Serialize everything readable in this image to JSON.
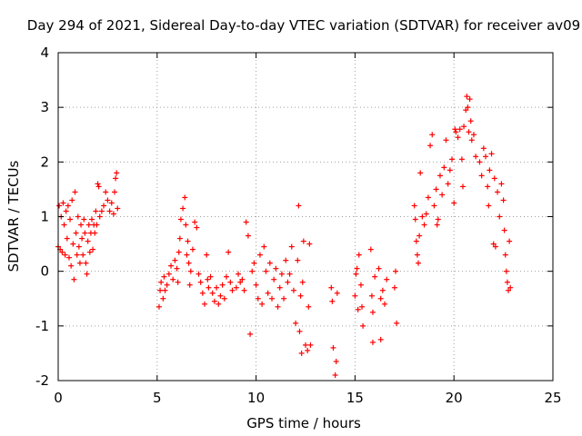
{
  "chart_data": {
    "type": "scatter",
    "title": "Day 294 of 2021, Sidereal Day-to-day VTEC variation (SDTVAR) for receiver av09",
    "xlabel": "GPS time / hours",
    "ylabel": "SDTVAR / TECUs",
    "xlim": [
      0,
      25
    ],
    "ylim": [
      -2,
      4
    ],
    "xticks": [
      0,
      5,
      10,
      15,
      20,
      25
    ],
    "yticks": [
      -2,
      -1,
      0,
      1,
      2,
      3,
      4
    ],
    "xtick_labels": [
      "0",
      "5",
      "10",
      "15",
      "20",
      "25"
    ],
    "ytick_labels": [
      "-2",
      "-1",
      "0",
      "1",
      "2",
      "3",
      "4"
    ],
    "grid": true,
    "marker": "+",
    "series_color": "#ff0000",
    "series": [
      {
        "name": "SDTVAR",
        "points": [
          [
            0.0,
            0.45
          ],
          [
            0.05,
            1.2
          ],
          [
            0.1,
            0.4
          ],
          [
            0.15,
            1.0
          ],
          [
            0.2,
            0.35
          ],
          [
            0.25,
            1.25
          ],
          [
            0.3,
            0.85
          ],
          [
            0.35,
            0.3
          ],
          [
            0.4,
            1.1
          ],
          [
            0.45,
            0.6
          ],
          [
            0.5,
            1.2
          ],
          [
            0.55,
            0.25
          ],
          [
            0.6,
            0.95
          ],
          [
            0.65,
            0.1
          ],
          [
            0.7,
            1.3
          ],
          [
            0.75,
            0.5
          ],
          [
            0.8,
            -0.15
          ],
          [
            0.85,
            1.45
          ],
          [
            0.9,
            0.7
          ],
          [
            0.95,
            0.3
          ],
          [
            1.0,
            1.0
          ],
          [
            1.05,
            0.45
          ],
          [
            1.1,
            0.15
          ],
          [
            1.15,
            0.85
          ],
          [
            1.2,
            0.6
          ],
          [
            1.25,
            0.3
          ],
          [
            1.3,
            0.95
          ],
          [
            1.35,
            0.7
          ],
          [
            1.4,
            0.15
          ],
          [
            1.45,
            -0.05
          ],
          [
            1.5,
            0.55
          ],
          [
            1.55,
            0.85
          ],
          [
            1.6,
            0.35
          ],
          [
            1.65,
            0.7
          ],
          [
            1.7,
            0.95
          ],
          [
            1.75,
            0.4
          ],
          [
            1.8,
            0.85
          ],
          [
            1.85,
            0.7
          ],
          [
            1.9,
            1.1
          ],
          [
            1.95,
            0.85
          ],
          [
            2.0,
            1.6
          ],
          [
            2.05,
            1.55
          ],
          [
            2.1,
            1.0
          ],
          [
            2.2,
            1.1
          ],
          [
            2.3,
            1.2
          ],
          [
            2.4,
            1.45
          ],
          [
            2.5,
            1.3
          ],
          [
            2.6,
            1.1
          ],
          [
            2.7,
            1.25
          ],
          [
            2.8,
            1.05
          ],
          [
            2.85,
            1.45
          ],
          [
            2.9,
            1.7
          ],
          [
            2.95,
            1.8
          ],
          [
            3.0,
            1.15
          ],
          [
            5.1,
            -0.65
          ],
          [
            5.15,
            -0.35
          ],
          [
            5.2,
            -0.2
          ],
          [
            5.3,
            -0.5
          ],
          [
            5.35,
            -0.1
          ],
          [
            5.4,
            -0.35
          ],
          [
            5.5,
            -0.25
          ],
          [
            5.6,
            -0.05
          ],
          [
            5.7,
            0.1
          ],
          [
            5.8,
            -0.15
          ],
          [
            5.9,
            0.2
          ],
          [
            6.0,
            0.05
          ],
          [
            6.05,
            -0.2
          ],
          [
            6.1,
            0.35
          ],
          [
            6.15,
            0.6
          ],
          [
            6.2,
            0.95
          ],
          [
            6.3,
            1.15
          ],
          [
            6.4,
            1.35
          ],
          [
            6.45,
            0.85
          ],
          [
            6.5,
            0.3
          ],
          [
            6.55,
            0.55
          ],
          [
            6.6,
            0.15
          ],
          [
            6.65,
            -0.25
          ],
          [
            6.7,
            0.0
          ],
          [
            6.8,
            0.4
          ],
          [
            6.9,
            0.9
          ],
          [
            7.0,
            0.8
          ],
          [
            7.1,
            -0.05
          ],
          [
            7.2,
            -0.2
          ],
          [
            7.3,
            -0.4
          ],
          [
            7.4,
            -0.6
          ],
          [
            7.5,
            0.3
          ],
          [
            7.55,
            -0.15
          ],
          [
            7.6,
            -0.3
          ],
          [
            7.7,
            -0.1
          ],
          [
            7.8,
            -0.4
          ],
          [
            7.9,
            -0.55
          ],
          [
            8.0,
            -0.3
          ],
          [
            8.1,
            -0.6
          ],
          [
            8.2,
            -0.45
          ],
          [
            8.3,
            -0.25
          ],
          [
            8.4,
            -0.5
          ],
          [
            8.5,
            -0.1
          ],
          [
            8.6,
            0.35
          ],
          [
            8.7,
            -0.2
          ],
          [
            8.8,
            -0.35
          ],
          [
            9.0,
            -0.3
          ],
          [
            9.1,
            -0.05
          ],
          [
            9.2,
            -0.2
          ],
          [
            9.3,
            -0.15
          ],
          [
            9.4,
            -0.35
          ],
          [
            9.5,
            0.9
          ],
          [
            9.6,
            0.65
          ],
          [
            9.7,
            -1.15
          ],
          [
            9.8,
            0.0
          ],
          [
            9.9,
            0.15
          ],
          [
            10.0,
            -0.25
          ],
          [
            10.1,
            -0.5
          ],
          [
            10.2,
            0.3
          ],
          [
            10.3,
            -0.6
          ],
          [
            10.4,
            0.45
          ],
          [
            10.5,
            0.0
          ],
          [
            10.6,
            -0.4
          ],
          [
            10.7,
            0.15
          ],
          [
            10.8,
            -0.5
          ],
          [
            10.9,
            -0.15
          ],
          [
            11.0,
            0.05
          ],
          [
            11.1,
            -0.65
          ],
          [
            11.2,
            -0.3
          ],
          [
            11.3,
            -0.05
          ],
          [
            11.4,
            -0.5
          ],
          [
            11.5,
            0.2
          ],
          [
            11.6,
            -0.2
          ],
          [
            11.7,
            -0.05
          ],
          [
            11.8,
            0.45
          ],
          [
            11.9,
            -0.35
          ],
          [
            12.0,
            -0.95
          ],
          [
            12.1,
            0.2
          ],
          [
            12.15,
            1.2
          ],
          [
            12.2,
            -1.1
          ],
          [
            12.25,
            -0.45
          ],
          [
            12.3,
            -1.5
          ],
          [
            12.35,
            -0.2
          ],
          [
            12.4,
            0.55
          ],
          [
            12.5,
            -1.35
          ],
          [
            12.6,
            -1.45
          ],
          [
            12.65,
            -0.65
          ],
          [
            12.7,
            0.5
          ],
          [
            12.75,
            -1.35
          ],
          [
            13.8,
            -0.3
          ],
          [
            13.85,
            -0.55
          ],
          [
            13.9,
            -1.4
          ],
          [
            14.0,
            -1.9
          ],
          [
            14.05,
            -1.65
          ],
          [
            14.1,
            -0.4
          ],
          [
            15.0,
            -0.45
          ],
          [
            15.05,
            -0.05
          ],
          [
            15.1,
            0.05
          ],
          [
            15.15,
            -0.7
          ],
          [
            15.2,
            0.3
          ],
          [
            15.3,
            -0.25
          ],
          [
            15.35,
            -0.65
          ],
          [
            15.4,
            -1.0
          ],
          [
            15.8,
            0.4
          ],
          [
            15.85,
            -0.45
          ],
          [
            15.9,
            -0.75
          ],
          [
            16.0,
            -0.1
          ],
          [
            16.2,
            0.05
          ],
          [
            16.3,
            -0.5
          ],
          [
            16.4,
            -0.35
          ],
          [
            16.5,
            -0.6
          ],
          [
            16.6,
            -0.15
          ],
          [
            16.3,
            -1.25
          ],
          [
            15.9,
            -1.3
          ],
          [
            17.0,
            -0.3
          ],
          [
            17.05,
            0.0
          ],
          [
            17.1,
            -0.95
          ],
          [
            18.0,
            1.2
          ],
          [
            18.05,
            0.95
          ],
          [
            18.1,
            0.55
          ],
          [
            18.15,
            0.3
          ],
          [
            18.2,
            0.15
          ],
          [
            18.25,
            0.65
          ],
          [
            18.3,
            1.8
          ],
          [
            18.4,
            1.0
          ],
          [
            18.5,
            0.85
          ],
          [
            18.6,
            1.05
          ],
          [
            18.7,
            1.35
          ],
          [
            18.8,
            2.3
          ],
          [
            18.9,
            2.5
          ],
          [
            19.0,
            1.2
          ],
          [
            19.1,
            1.5
          ],
          [
            19.15,
            0.85
          ],
          [
            19.2,
            0.95
          ],
          [
            19.3,
            1.75
          ],
          [
            19.4,
            1.4
          ],
          [
            19.5,
            1.9
          ],
          [
            19.6,
            2.4
          ],
          [
            19.7,
            1.6
          ],
          [
            19.8,
            1.85
          ],
          [
            19.9,
            2.05
          ],
          [
            20.0,
            1.25
          ],
          [
            20.05,
            2.6
          ],
          [
            20.1,
            2.55
          ],
          [
            20.2,
            2.45
          ],
          [
            20.3,
            2.6
          ],
          [
            20.4,
            2.05
          ],
          [
            20.45,
            1.55
          ],
          [
            20.5,
            2.65
          ],
          [
            20.6,
            2.95
          ],
          [
            20.65,
            3.2
          ],
          [
            20.7,
            3.0
          ],
          [
            20.75,
            2.55
          ],
          [
            20.8,
            3.15
          ],
          [
            20.85,
            2.75
          ],
          [
            20.9,
            2.4
          ],
          [
            21.0,
            2.5
          ],
          [
            21.1,
            2.1
          ],
          [
            21.3,
            2.0
          ],
          [
            21.4,
            1.75
          ],
          [
            21.5,
            2.25
          ],
          [
            21.6,
            2.1
          ],
          [
            21.7,
            1.55
          ],
          [
            21.75,
            1.2
          ],
          [
            21.8,
            1.85
          ],
          [
            21.9,
            2.15
          ],
          [
            22.0,
            0.5
          ],
          [
            22.05,
            1.7
          ],
          [
            22.1,
            0.45
          ],
          [
            22.2,
            1.45
          ],
          [
            22.3,
            1.0
          ],
          [
            22.4,
            1.6
          ],
          [
            22.5,
            1.3
          ],
          [
            22.55,
            0.75
          ],
          [
            22.6,
            0.3
          ],
          [
            22.65,
            0.0
          ],
          [
            22.7,
            -0.2
          ],
          [
            22.75,
            -0.35
          ],
          [
            22.8,
            0.55
          ],
          [
            22.85,
            -0.3
          ]
        ]
      }
    ]
  }
}
